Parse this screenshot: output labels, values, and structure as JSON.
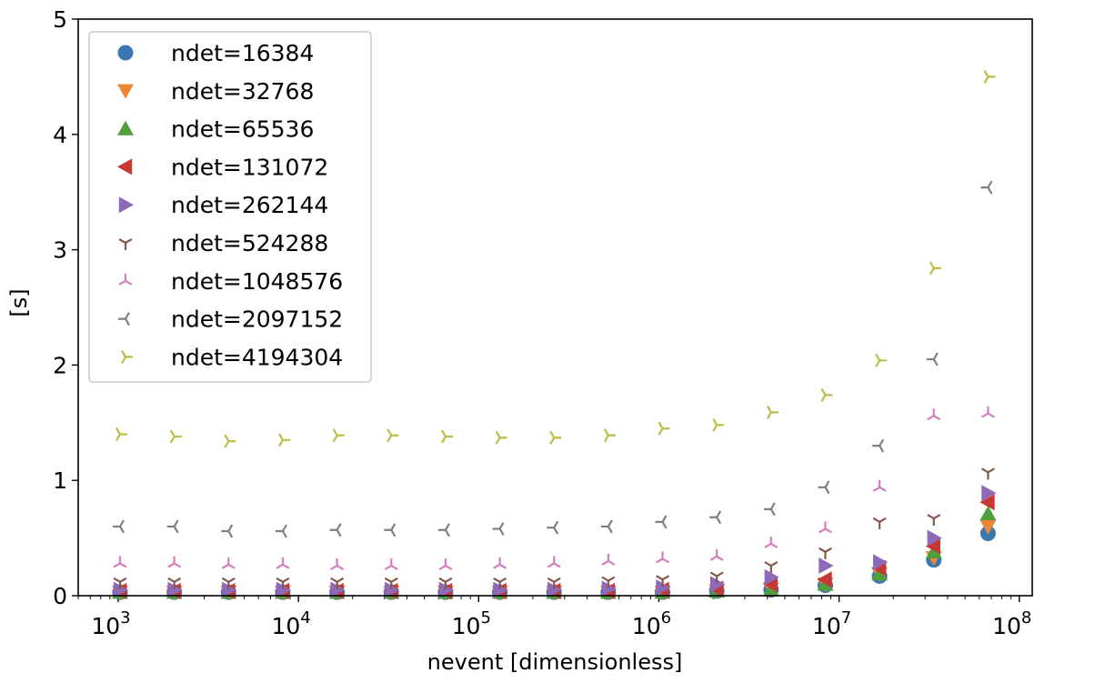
{
  "chart_data": {
    "type": "scatter",
    "title": "",
    "xlabel": "nevent [dimensionless]",
    "ylabel": "[s]",
    "xscale": "log",
    "xlim": [
      600,
      118000000
    ],
    "ylim": [
      0,
      5
    ],
    "yticks": [
      "0",
      "1",
      "2",
      "3",
      "4",
      "5"
    ],
    "xtick_exponents": [
      "3",
      "4",
      "5",
      "6",
      "7",
      "8"
    ],
    "xtick_base": "10",
    "grid": false,
    "legend_position": "upper-left",
    "x": [
      1024,
      2048,
      4096,
      8192,
      16384,
      32768,
      65536,
      131072,
      262144,
      524288,
      1048576,
      2097152,
      4194304,
      8388608,
      16777216,
      33554432,
      67108864
    ],
    "series": [
      {
        "name": "ndet=16384",
        "marker": "circle",
        "color": "#3a76af",
        "values": [
          0.03,
          0.03,
          0.03,
          0.03,
          0.03,
          0.03,
          0.03,
          0.03,
          0.03,
          0.03,
          0.03,
          0.04,
          0.05,
          0.09,
          0.17,
          0.31,
          0.54
        ]
      },
      {
        "name": "ndet=32768",
        "marker": "triangle-down",
        "color": "#ef8636",
        "values": [
          0.03,
          0.03,
          0.03,
          0.03,
          0.03,
          0.03,
          0.03,
          0.03,
          0.03,
          0.03,
          0.03,
          0.04,
          0.06,
          0.1,
          0.19,
          0.33,
          0.6
        ]
      },
      {
        "name": "ndet=65536",
        "marker": "triangle-up",
        "color": "#519e3e",
        "values": [
          0.03,
          0.03,
          0.03,
          0.03,
          0.03,
          0.03,
          0.03,
          0.03,
          0.03,
          0.03,
          0.03,
          0.04,
          0.05,
          0.1,
          0.19,
          0.38,
          0.71
        ]
      },
      {
        "name": "ndet=131072",
        "marker": "triangle-left",
        "color": "#c53932",
        "values": [
          0.04,
          0.04,
          0.04,
          0.04,
          0.04,
          0.04,
          0.04,
          0.04,
          0.04,
          0.04,
          0.05,
          0.06,
          0.1,
          0.14,
          0.24,
          0.43,
          0.81
        ]
      },
      {
        "name": "ndet=262144",
        "marker": "triangle-right",
        "color": "#8d69b8",
        "values": [
          0.05,
          0.05,
          0.05,
          0.05,
          0.05,
          0.05,
          0.05,
          0.05,
          0.05,
          0.06,
          0.07,
          0.1,
          0.16,
          0.26,
          0.29,
          0.5,
          0.89
        ]
      },
      {
        "name": "ndet=524288",
        "marker": "tri-down",
        "color": "#84584e",
        "values": [
          0.12,
          0.12,
          0.12,
          0.12,
          0.12,
          0.12,
          0.12,
          0.12,
          0.12,
          0.13,
          0.14,
          0.17,
          0.26,
          0.38,
          0.64,
          0.67,
          1.07
        ]
      },
      {
        "name": "ndet=1048576",
        "marker": "tri-up",
        "color": "#d57dbe",
        "values": [
          0.28,
          0.28,
          0.27,
          0.27,
          0.26,
          0.26,
          0.26,
          0.27,
          0.28,
          0.3,
          0.32,
          0.34,
          0.45,
          0.58,
          0.94,
          1.56,
          1.58
        ]
      },
      {
        "name": "ndet=2097152",
        "marker": "tri-left",
        "color": "#7f7f7f",
        "values": [
          0.6,
          0.6,
          0.56,
          0.56,
          0.57,
          0.57,
          0.57,
          0.58,
          0.59,
          0.6,
          0.64,
          0.68,
          0.75,
          0.94,
          1.3,
          2.05,
          3.54
        ]
      },
      {
        "name": "ndet=4194304",
        "marker": "tri-right",
        "color": "#bcbd45",
        "values": [
          1.4,
          1.38,
          1.34,
          1.35,
          1.39,
          1.39,
          1.38,
          1.37,
          1.37,
          1.39,
          1.45,
          1.48,
          1.59,
          1.74,
          2.04,
          2.84,
          4.5
        ]
      }
    ]
  }
}
